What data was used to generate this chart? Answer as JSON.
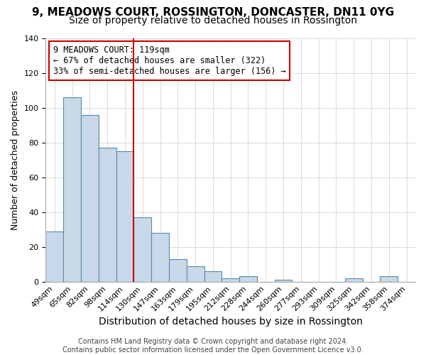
{
  "title": "9, MEADOWS COURT, ROSSINGTON, DONCASTER, DN11 0YG",
  "subtitle": "Size of property relative to detached houses in Rossington",
  "xlabel": "Distribution of detached houses by size in Rossington",
  "ylabel": "Number of detached properties",
  "bin_labels": [
    "49sqm",
    "65sqm",
    "82sqm",
    "98sqm",
    "114sqm",
    "130sqm",
    "147sqm",
    "163sqm",
    "179sqm",
    "195sqm",
    "212sqm",
    "228sqm",
    "244sqm",
    "260sqm",
    "277sqm",
    "293sqm",
    "309sqm",
    "325sqm",
    "342sqm",
    "358sqm",
    "374sqm"
  ],
  "bar_heights": [
    29,
    106,
    96,
    77,
    75,
    37,
    28,
    13,
    9,
    6,
    2,
    3,
    0,
    1,
    0,
    0,
    0,
    2,
    0,
    3,
    0
  ],
  "bar_color": "#c8d8e8",
  "bar_edge_color": "#5a8aaa",
  "ylim": [
    0,
    140
  ],
  "yticks": [
    0,
    20,
    40,
    60,
    80,
    100,
    120,
    140
  ],
  "vline_color": "#cc0000",
  "annotation_title": "9 MEADOWS COURT: 119sqm",
  "annotation_line1": "← 67% of detached houses are smaller (322)",
  "annotation_line2": "33% of semi-detached houses are larger (156) →",
  "annotation_box_color": "#cc0000",
  "footer_line1": "Contains HM Land Registry data © Crown copyright and database right 2024.",
  "footer_line2": "Contains public sector information licensed under the Open Government Licence v3.0.",
  "title_fontsize": 11,
  "subtitle_fontsize": 10,
  "xlabel_fontsize": 10,
  "ylabel_fontsize": 9,
  "tick_fontsize": 8,
  "footer_fontsize": 7
}
